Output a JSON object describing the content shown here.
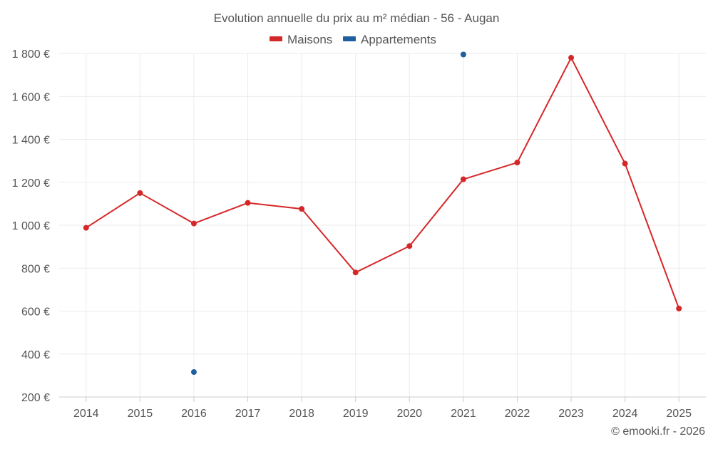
{
  "chart_data": {
    "type": "line",
    "title": "Evolution annuelle du prix au m² médian - 56 - Augan",
    "categories": [
      "2014",
      "2015",
      "2016",
      "2017",
      "2018",
      "2019",
      "2020",
      "2021",
      "2022",
      "2023",
      "2024",
      "2025"
    ],
    "y_tick_labels": [
      "1 800 €",
      "1 600 €",
      "1 400 €",
      "1 200 €",
      "1 000 €",
      "800 €",
      "600 €",
      "400 €",
      "200 €"
    ],
    "y_ticks": [
      1800,
      1600,
      1400,
      1200,
      1000,
      800,
      600,
      400,
      200
    ],
    "ylim": [
      200,
      1800
    ],
    "xlabel": "",
    "ylabel": "",
    "grid": true,
    "legend_position": "top-center",
    "series": [
      {
        "name": "Maisons",
        "color": "#d62728",
        "values": [
          988,
          1150,
          1008,
          1104,
          1076,
          780,
          903,
          1214,
          1292,
          1780,
          1287,
          612
        ]
      },
      {
        "name": "Appartements",
        "color": "#1f5fa0",
        "values": [
          null,
          null,
          316,
          null,
          null,
          null,
          null,
          1795,
          null,
          null,
          null,
          null
        ]
      }
    ],
    "credit": "© emooki.fr - 2026"
  }
}
